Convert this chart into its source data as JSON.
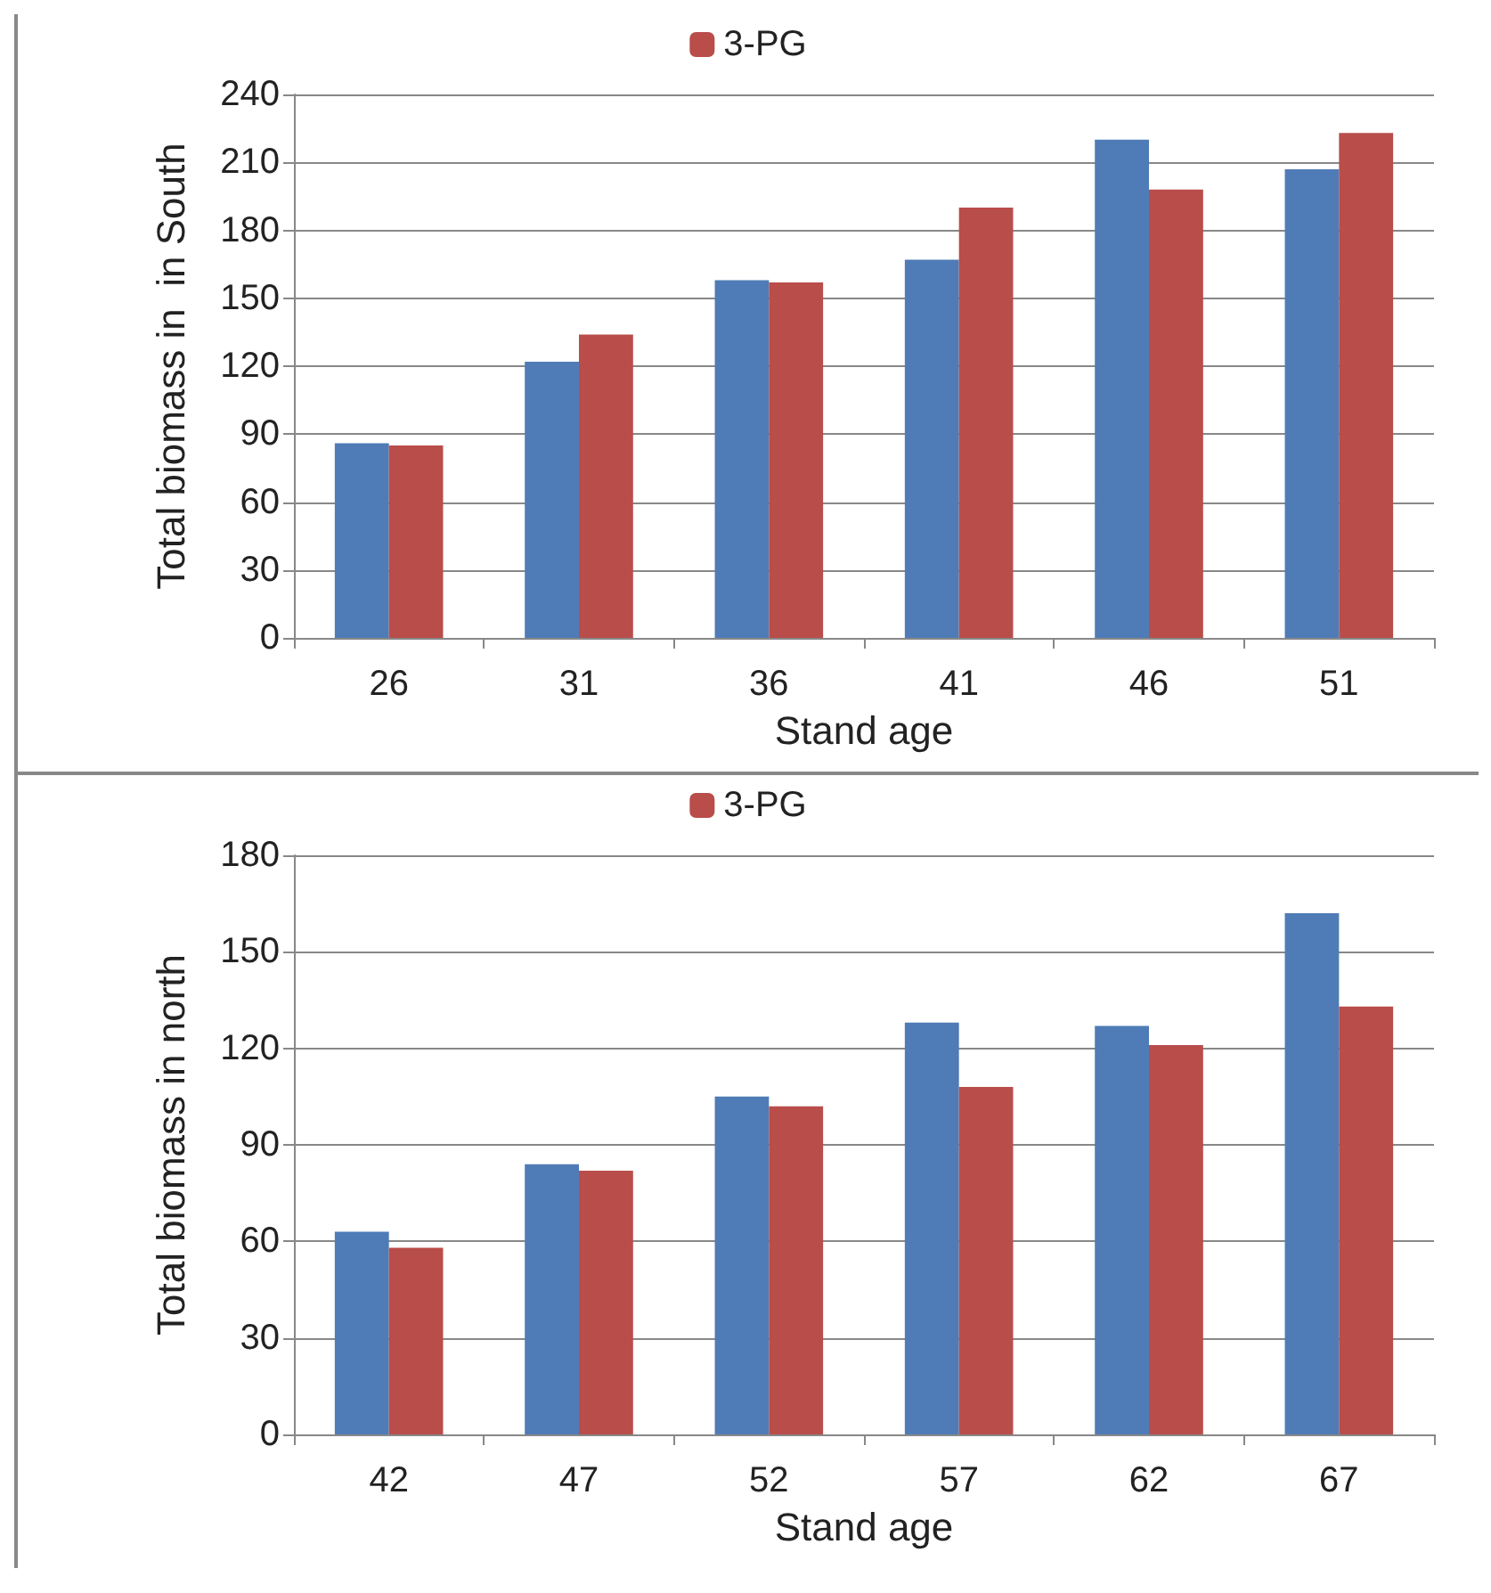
{
  "chart_data": [
    {
      "type": "bar",
      "xlabel": "Stand age",
      "ylabel": "Total biomass in  in South",
      "categories": [
        "26",
        "31",
        "36",
        "41",
        "46",
        "51"
      ],
      "series": [
        {
          "color": "#4f7cb6",
          "values": [
            86,
            122,
            158,
            167,
            220,
            207
          ]
        },
        {
          "name": "3-PG",
          "color": "#b94d4a",
          "values": [
            85,
            134,
            157,
            190,
            198,
            223
          ]
        }
      ],
      "ylim": [
        0,
        240
      ],
      "yticks": [
        0,
        30,
        60,
        90,
        120,
        150,
        180,
        210,
        240
      ],
      "grid": "y",
      "legend": "top"
    },
    {
      "type": "bar",
      "xlabel": "Stand age",
      "ylabel": "Total biomass in north",
      "categories": [
        "42",
        "47",
        "52",
        "57",
        "62",
        "67"
      ],
      "series": [
        {
          "color": "#4f7cb6",
          "values": [
            63,
            84,
            105,
            128,
            127,
            162
          ]
        },
        {
          "name": "3-PG",
          "color": "#b94d4a",
          "values": [
            58,
            82,
            102,
            108,
            121,
            133
          ]
        }
      ],
      "ylim": [
        0,
        180
      ],
      "yticks": [
        0,
        30,
        60,
        90,
        120,
        150,
        180
      ],
      "grid": "y",
      "legend": "top"
    }
  ]
}
